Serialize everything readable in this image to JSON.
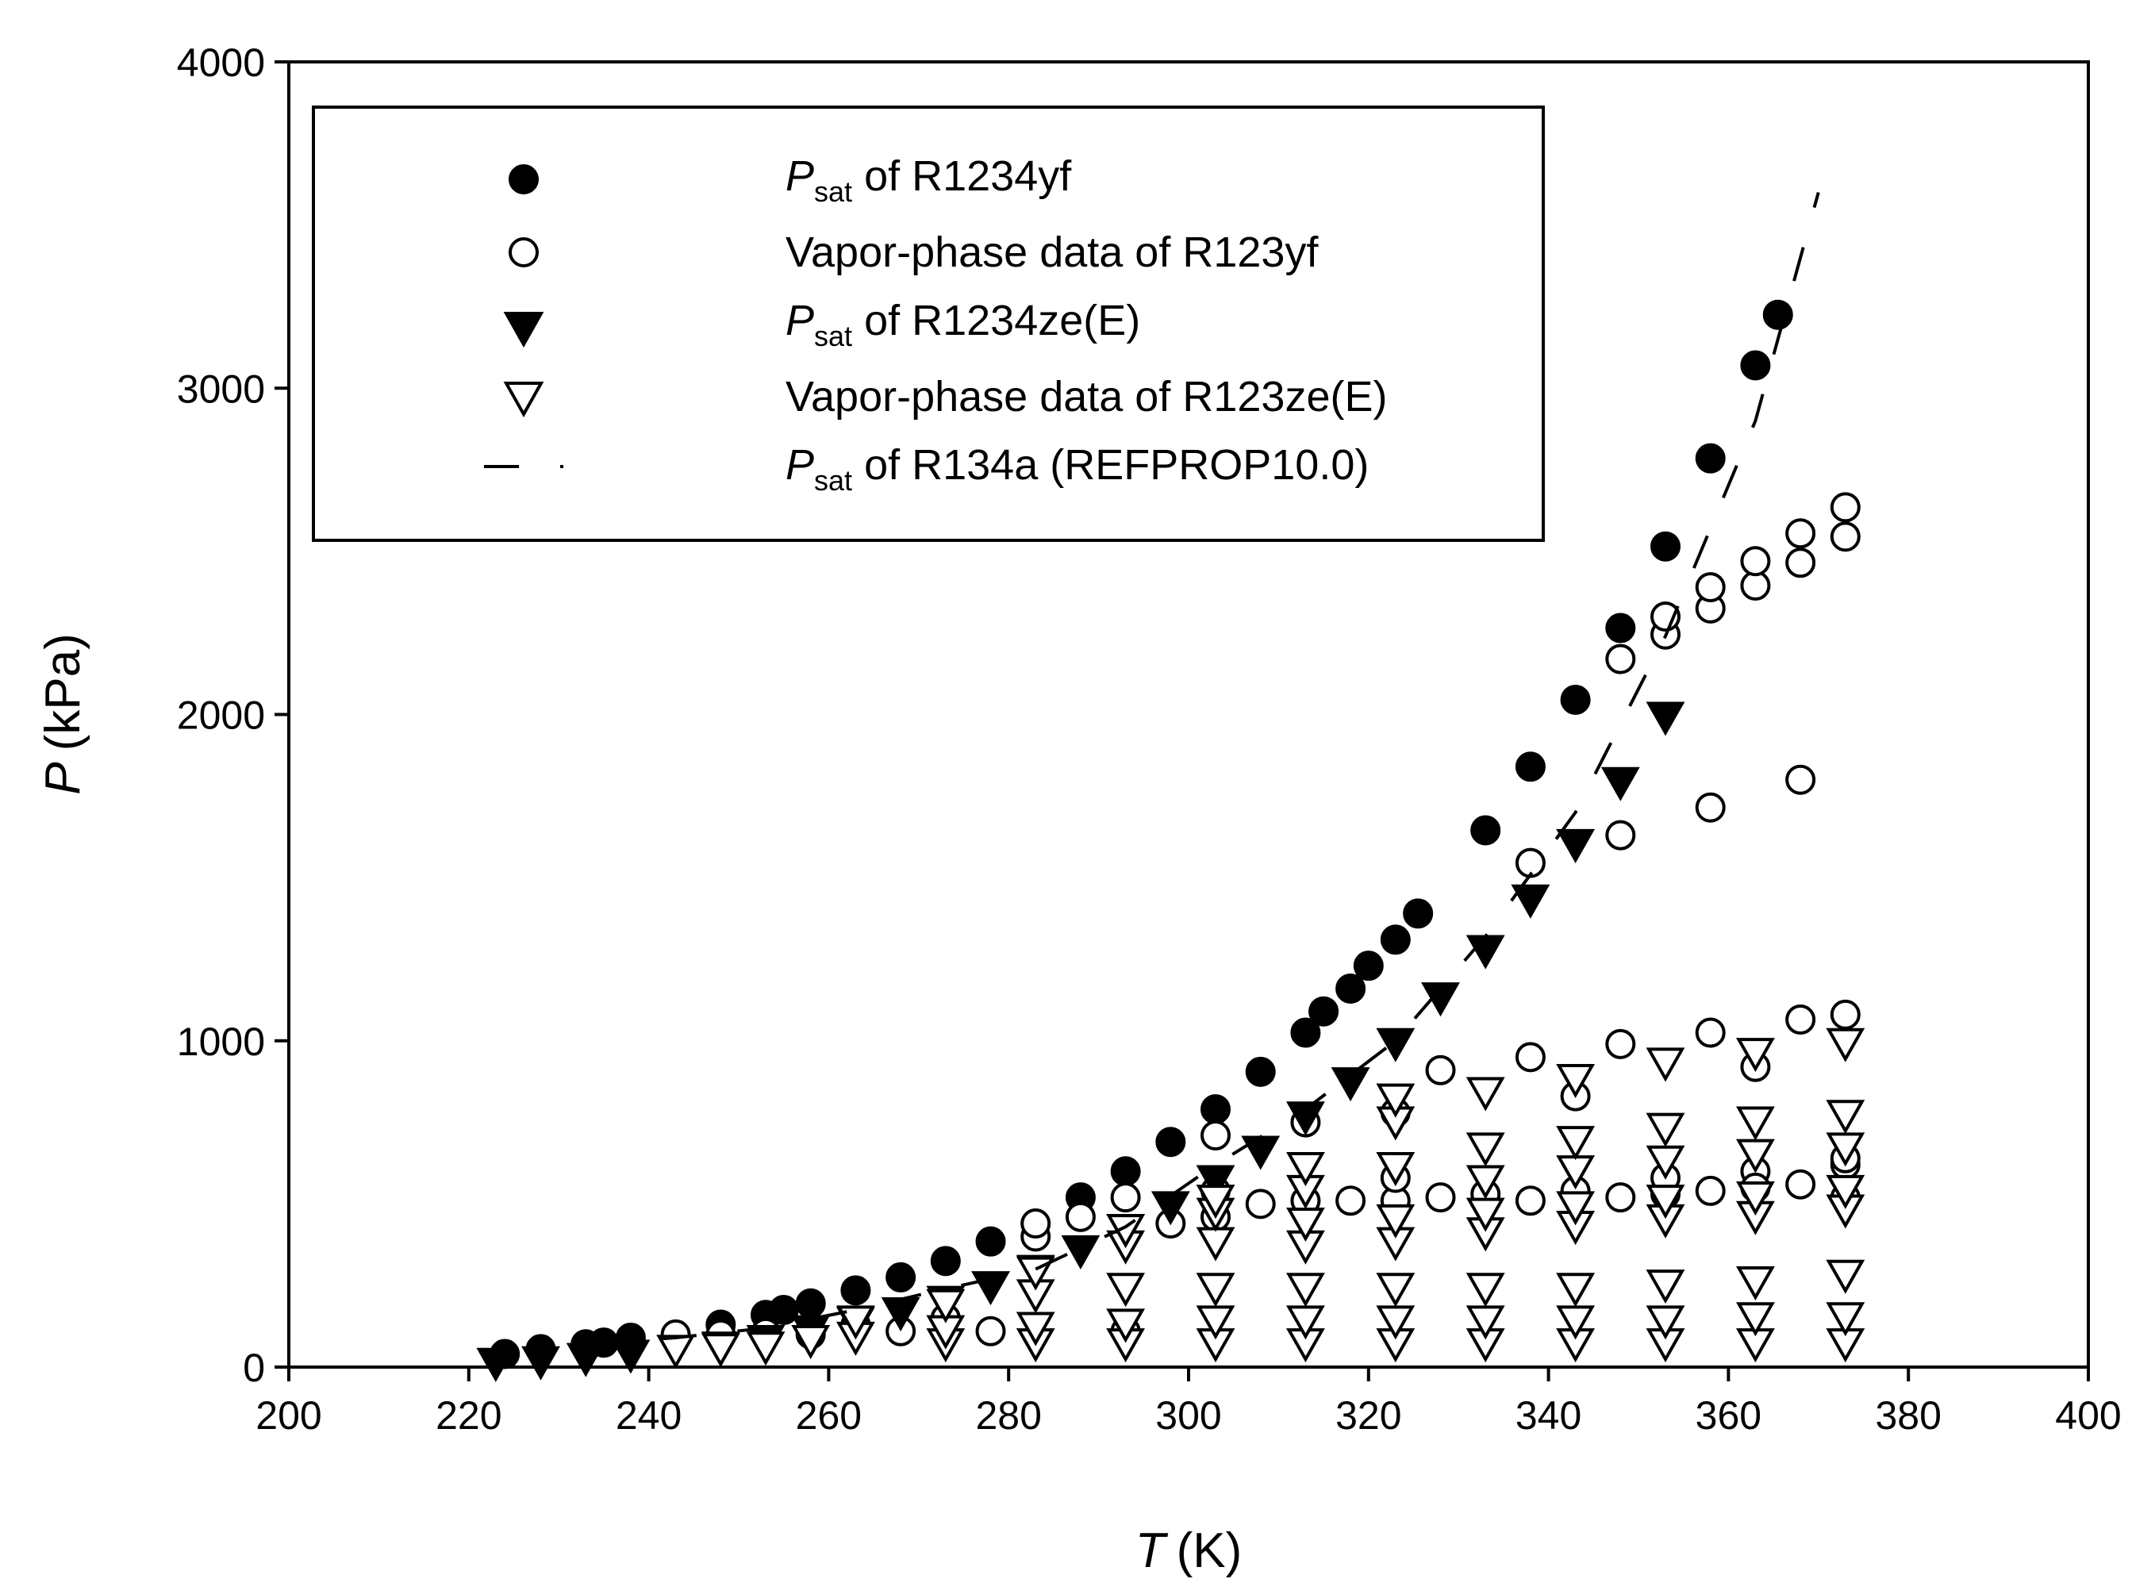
{
  "chart_data": {
    "type": "scatter",
    "title": "",
    "xlabel": {
      "symbol": "T",
      "unit": "(K)"
    },
    "ylabel": {
      "symbol": "P",
      "unit": "(kPa)"
    },
    "xlim": [
      200,
      400
    ],
    "ylim": [
      0,
      4000
    ],
    "x_ticks": [
      "200",
      "220",
      "240",
      "260",
      "280",
      "300",
      "320",
      "340",
      "360",
      "380",
      "400"
    ],
    "y_ticks": [
      "0",
      "1000",
      "2000",
      "3000",
      "4000"
    ],
    "grid": false,
    "legend_position": "top-left",
    "legend": [
      {
        "series": "psat_r1234yf",
        "symbol_text": "P",
        "sub": "sat",
        "text": " of R1234yf"
      },
      {
        "series": "vapor_r1234yf",
        "symbol_text": "",
        "sub": "",
        "text": "Vapor-phase data of R123yf"
      },
      {
        "series": "psat_r1234ze",
        "symbol_text": "P",
        "sub": "sat",
        "text": " of R1234ze(E)"
      },
      {
        "series": "vapor_r1234ze",
        "symbol_text": "",
        "sub": "",
        "text": "Vapor-phase data of R123ze(E)"
      },
      {
        "series": "psat_r134a",
        "symbol_text": "P",
        "sub": "sat",
        "text": " of R134a (REFPROP10.0)"
      }
    ],
    "series": [
      {
        "id": "psat_r1234yf",
        "name": "Psat of R1234yf",
        "marker": "filled-circle",
        "x": [
          224,
          228,
          233,
          235,
          238,
          248,
          253,
          255,
          258,
          263,
          268,
          273,
          278,
          288,
          293,
          298,
          303,
          308,
          313,
          315,
          318,
          320,
          323,
          325.5,
          333,
          338,
          343,
          348,
          353,
          358,
          363,
          365.5
        ],
        "y": [
          40,
          55,
          70,
          75,
          90,
          130,
          160,
          175,
          195,
          235,
          275,
          325,
          385,
          520,
          600,
          690,
          790,
          905,
          1025,
          1090,
          1160,
          1230,
          1310,
          1390,
          1645,
          1840,
          2045,
          2265,
          2515,
          2785,
          3070,
          3225
        ]
      },
      {
        "id": "vapor_r1234yf",
        "name": "Vapor-phase data of R123yf",
        "marker": "open-circle",
        "x": [
          243,
          248,
          253,
          258,
          263,
          268,
          273,
          278,
          283,
          283,
          288,
          293,
          293,
          298,
          303,
          303,
          303,
          308,
          313,
          313,
          318,
          323,
          323,
          323,
          328,
          328,
          333,
          338,
          338,
          338,
          343,
          343,
          348,
          348,
          348,
          348,
          353,
          353,
          353,
          353,
          358,
          358,
          358,
          358,
          358,
          363,
          363,
          363,
          363,
          363,
          368,
          368,
          368,
          368,
          368,
          373,
          373,
          373,
          373,
          373,
          373
        ],
        "y": [
          100,
          100,
          105,
          100,
          130,
          110,
          150,
          110,
          400,
          440,
          460,
          520,
          110,
          440,
          460,
          540,
          710,
          500,
          510,
          750,
          510,
          510,
          580,
          780,
          520,
          910,
          530,
          510,
          950,
          1545,
          540,
          830,
          520,
          990,
          1630,
          2170,
          530,
          2245,
          2300,
          580,
          1715,
          2325,
          2390,
          1025,
          540,
          920,
          2395,
          2470,
          600,
          550,
          1800,
          2465,
          2555,
          1065,
          560,
          2545,
          2635,
          1080,
          620,
          640,
          520
        ]
      },
      {
        "id": "psat_r1234ze",
        "name": "Psat of R1234ze(E)",
        "marker": "filled-triangle-down",
        "x": [
          223,
          228,
          233,
          238,
          248,
          253,
          258,
          263,
          268,
          273,
          278,
          283,
          288,
          293,
          298,
          303,
          308,
          313,
          318,
          323,
          328,
          333,
          338,
          343,
          348,
          353
        ],
        "y": [
          20,
          25,
          35,
          45,
          70,
          90,
          120,
          145,
          175,
          210,
          255,
          305,
          365,
          430,
          500,
          580,
          670,
          775,
          880,
          1000,
          1140,
          1285,
          1440,
          1610,
          1800,
          2000
        ]
      },
      {
        "id": "vapor_r1234ze",
        "name": "Vapor-phase data of R123ze(E)",
        "marker": "open-triangle-down",
        "x": [
          243,
          248,
          253,
          258,
          263,
          263,
          273,
          273,
          273,
          283,
          283,
          283,
          283,
          293,
          293,
          293,
          293,
          293,
          303,
          303,
          303,
          303,
          303,
          303,
          313,
          313,
          313,
          313,
          313,
          313,
          313,
          323,
          323,
          323,
          323,
          323,
          323,
          323,
          323,
          333,
          333,
          333,
          333,
          333,
          333,
          333,
          333,
          343,
          343,
          343,
          343,
          343,
          343,
          343,
          343,
          353,
          353,
          353,
          353,
          353,
          353,
          353,
          353,
          363,
          363,
          363,
          363,
          363,
          363,
          363,
          363,
          373,
          373,
          373,
          373,
          373,
          373,
          373,
          373
        ],
        "y": [
          60,
          65,
          70,
          90,
          100,
          150,
          80,
          120,
          200,
          80,
          130,
          230,
          300,
          80,
          140,
          250,
          380,
          430,
          80,
          150,
          250,
          390,
          480,
          520,
          80,
          150,
          250,
          380,
          450,
          550,
          620,
          80,
          150,
          250,
          390,
          460,
          620,
          760,
          830,
          80,
          150,
          250,
          420,
          480,
          580,
          680,
          850,
          80,
          150,
          250,
          440,
          500,
          610,
          700,
          890,
          80,
          150,
          260,
          460,
          520,
          640,
          740,
          940,
          80,
          160,
          270,
          470,
          530,
          660,
          760,
          970,
          80,
          160,
          290,
          490,
          550,
          680,
          780,
          1000
        ]
      },
      {
        "id": "psat_r134a",
        "name": "Psat of R134a (REFPROP10.0)",
        "marker": "dashed-line",
        "x": [
          233,
          243,
          253,
          263,
          273,
          283,
          293,
          303,
          313,
          323,
          333,
          343,
          353,
          363,
          370
        ],
        "y": [
          70,
          90,
          120,
          175,
          240,
          300,
          430,
          620,
          790,
          1000,
          1320,
          1700,
          2240,
          2900,
          3600
        ]
      }
    ]
  }
}
